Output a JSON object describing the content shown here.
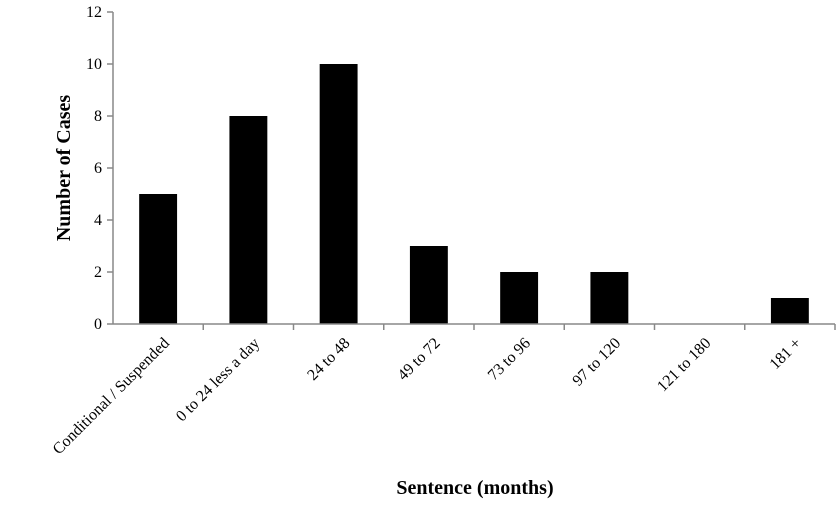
{
  "chart_data": {
    "type": "bar",
    "title": "",
    "xlabel": "Sentence (months)",
    "ylabel": "Number of Cases",
    "ylim": [
      0,
      12
    ],
    "yticks": [
      0,
      2,
      4,
      6,
      8,
      10,
      12
    ],
    "grid": false,
    "legend": "none",
    "categories": [
      "Conditional / Suspended",
      "0 to 24 less a day",
      "24 to 48",
      "49 to 72",
      "73 to 96",
      "97 to 120",
      "121 to 180",
      "181 +"
    ],
    "values": [
      5,
      8,
      10,
      3,
      2,
      2,
      0,
      1
    ],
    "colors": {
      "bar": "#000000",
      "axis": "#888888"
    }
  }
}
